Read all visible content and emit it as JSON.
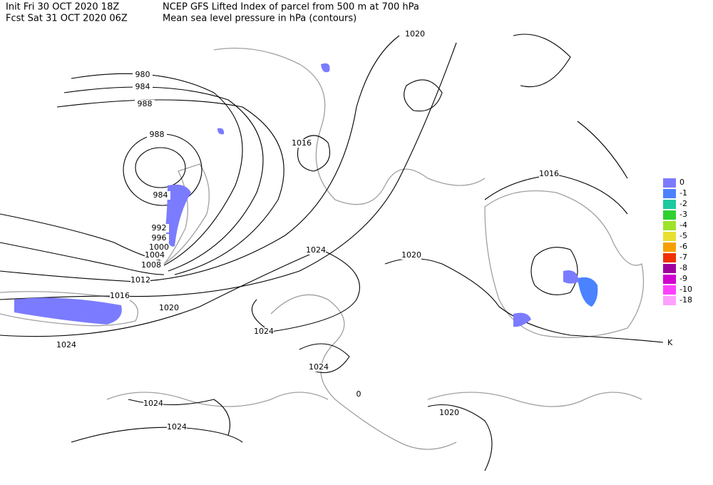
{
  "header": {
    "init": "Init  Fri 30 OCT 2020 18Z",
    "forecast": "Fcst Sat 31 OCT 2020 06Z",
    "title": "NCEP GFS Lifted Index of parcel from 500 m at 700 hPa",
    "subtitle": "Mean sea level pressure in hPa (contours)"
  },
  "contour_labels": [
    "980",
    "984",
    "988",
    "988",
    "984",
    "992",
    "996",
    "1000",
    "1004",
    "1008",
    "1012",
    "1016",
    "1020",
    "1024",
    "1020",
    "1016",
    "1024",
    "1020",
    "1016",
    "1024",
    "1024",
    "1024",
    "1024",
    "1020",
    "0"
  ],
  "legend": {
    "unit": "K",
    "entries": [
      {
        "label": "0",
        "color": "#7b7bff"
      },
      {
        "label": "-1",
        "color": "#4a82ff"
      },
      {
        "label": "-2",
        "color": "#20c8a0"
      },
      {
        "label": "-3",
        "color": "#30d030"
      },
      {
        "label": "-4",
        "color": "#9ee22a"
      },
      {
        "label": "-5",
        "color": "#e8e030"
      },
      {
        "label": "-6",
        "color": "#f5a000"
      },
      {
        "label": "-7",
        "color": "#f03000"
      },
      {
        "label": "-8",
        "color": "#a000a0"
      },
      {
        "label": "-9",
        "color": "#d000d0"
      },
      {
        "label": "-10",
        "color": "#ff40ff"
      },
      {
        "label": "-18",
        "color": "#ffa0ff"
      }
    ]
  }
}
